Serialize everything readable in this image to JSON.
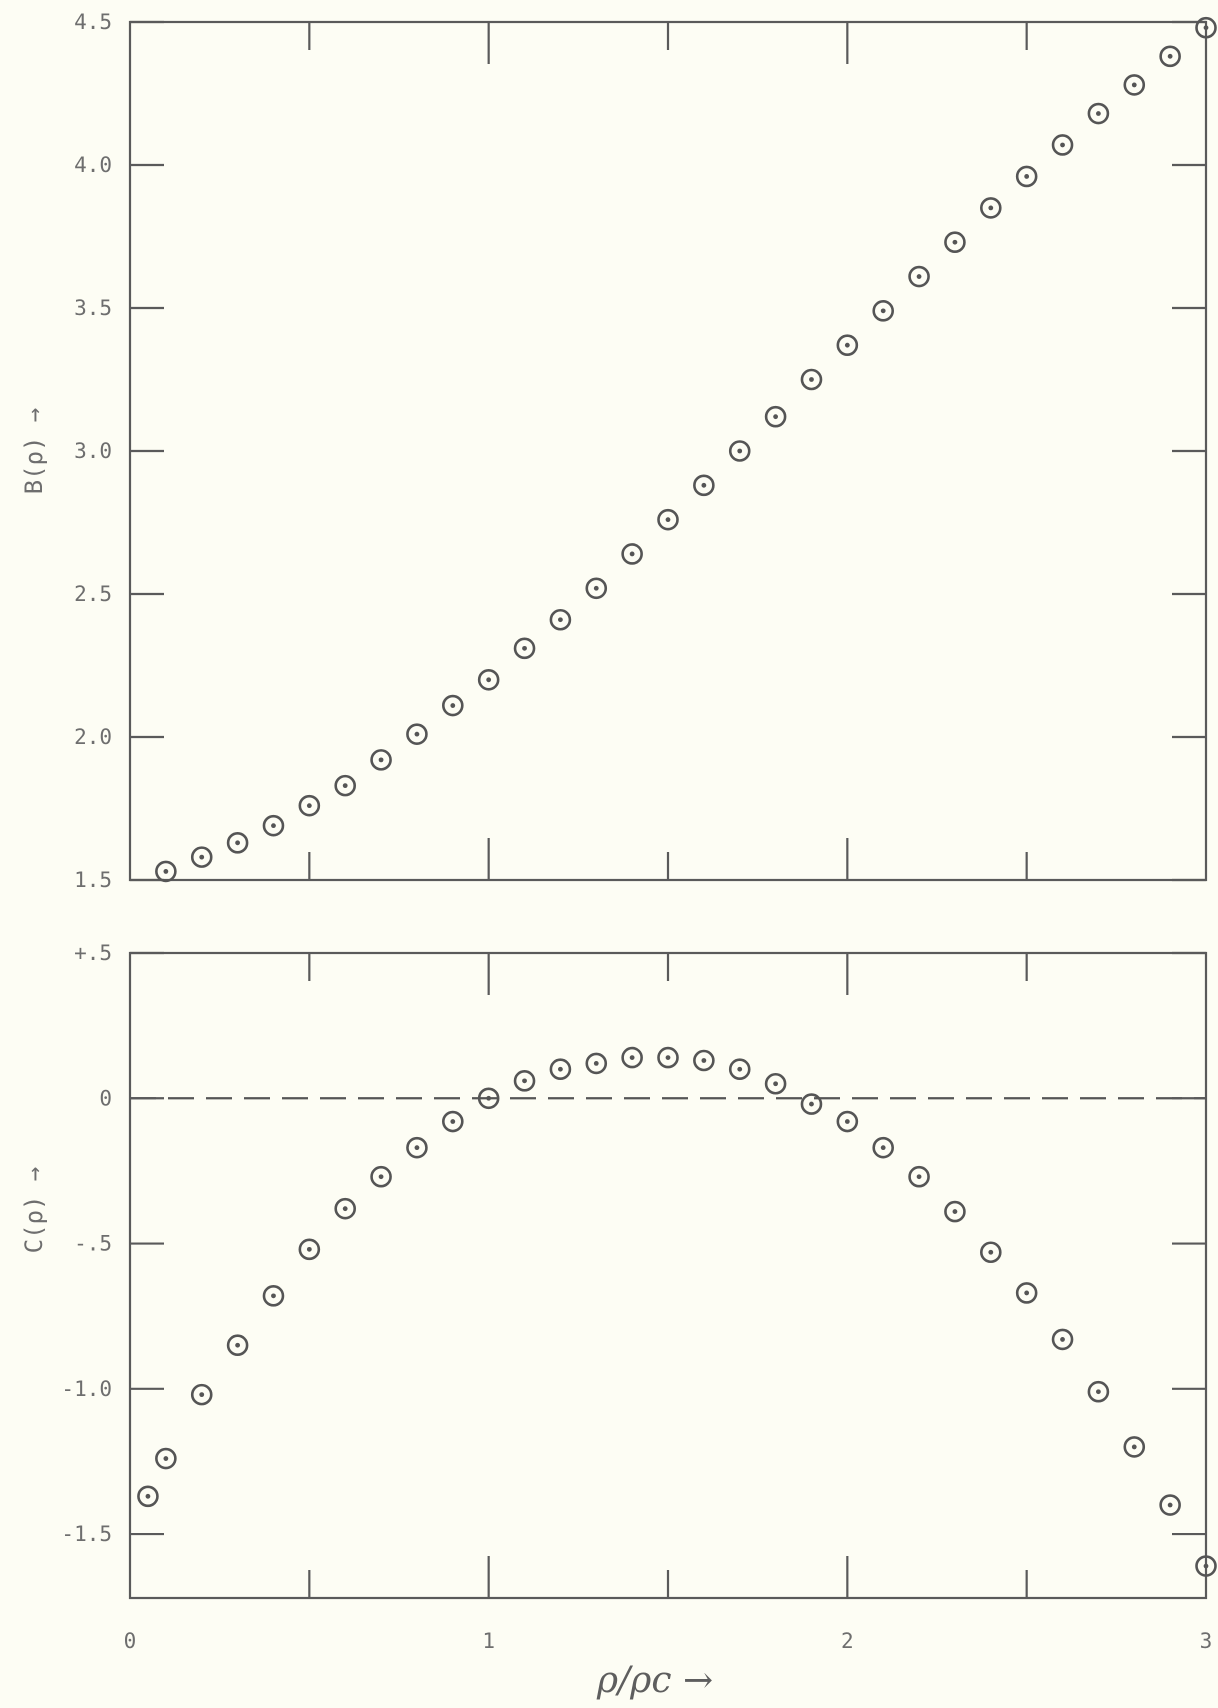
{
  "chart_data": [
    {
      "type": "scatter",
      "ylabel": "B(ρ) →",
      "ylim": [
        1.5,
        4.5
      ],
      "xlim": [
        0,
        3
      ],
      "yticks": [
        "4.5",
        "4.0",
        "3.5",
        "3.0",
        "2.5",
        "2.0",
        "1.5"
      ],
      "grid": false,
      "marker": "circle-dot",
      "series": [
        {
          "x": [
            0.1,
            0.2,
            0.3,
            0.4,
            0.5,
            0.6,
            0.7,
            0.8,
            0.9,
            1.0,
            1.1,
            1.2,
            1.3,
            1.4,
            1.5,
            1.6,
            1.7,
            1.8,
            1.9,
            2.0,
            2.1,
            2.2,
            2.3,
            2.4,
            2.5,
            2.6,
            2.7,
            2.8,
            2.9,
            3.0
          ],
          "y": [
            1.53,
            1.58,
            1.63,
            1.69,
            1.76,
            1.83,
            1.92,
            2.01,
            2.11,
            2.2,
            2.31,
            2.41,
            2.52,
            2.64,
            2.76,
            2.88,
            3.0,
            3.12,
            3.25,
            3.37,
            3.49,
            3.61,
            3.73,
            3.85,
            3.96,
            4.07,
            4.18,
            4.28,
            4.38,
            4.48
          ]
        }
      ]
    },
    {
      "type": "scatter",
      "ylabel": "C(ρ) →",
      "xlabel": "ρ/ρc →",
      "ylim": [
        -1.72,
        0.5
      ],
      "xlim": [
        0,
        3
      ],
      "yticks": [
        "+.5",
        "0",
        "-.5",
        "-1.0",
        "-1.5"
      ],
      "xticks": [
        "0",
        "1",
        "2",
        "3"
      ],
      "grid": false,
      "reference_line": "dashed line at C = 0",
      "marker": "circle-dot",
      "series": [
        {
          "x": [
            0.05,
            0.1,
            0.2,
            0.3,
            0.4,
            0.5,
            0.6,
            0.7,
            0.8,
            0.9,
            1.0,
            1.1,
            1.2,
            1.3,
            1.4,
            1.5,
            1.6,
            1.7,
            1.8,
            1.9,
            2.0,
            2.1,
            2.2,
            2.3,
            2.4,
            2.5,
            2.6,
            2.7,
            2.8,
            2.9,
            3.0
          ],
          "y": [
            -1.37,
            -1.24,
            -1.02,
            -0.85,
            -0.68,
            -0.52,
            -0.38,
            -0.27,
            -0.17,
            -0.08,
            0.0,
            0.06,
            0.1,
            0.12,
            0.14,
            0.14,
            0.13,
            0.1,
            0.05,
            -0.02,
            -0.08,
            -0.17,
            -0.27,
            -0.39,
            -0.53,
            -0.67,
            -0.83,
            -1.01,
            -1.2,
            -1.4,
            -1.61
          ]
        }
      ]
    }
  ]
}
